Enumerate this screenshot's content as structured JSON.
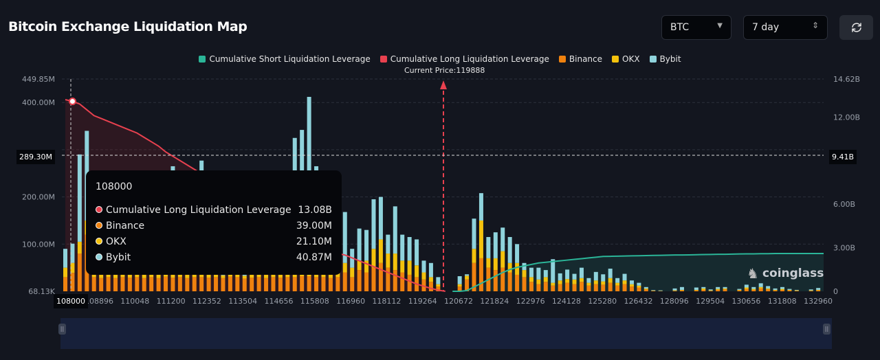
{
  "header": {
    "title": "Bitcoin Exchange Liquidation Map",
    "coin_select": "BTC",
    "range_select": "7 day",
    "refresh_icon": "refresh-icon"
  },
  "legend": [
    {
      "label": "Cumulative Short Liquidation Leverage",
      "color": "#2bb598"
    },
    {
      "label": "Cumulative Long Liquidation Leverage",
      "color": "#e8414f"
    },
    {
      "label": "Binance",
      "color": "#f0820f"
    },
    {
      "label": "OKX",
      "color": "#f4c20d"
    },
    {
      "label": "Bybit",
      "color": "#8fd3dc"
    }
  ],
  "current_price_label": "Current Price:119888",
  "crosshair": {
    "x_label": "108000",
    "left_label": "289.30M",
    "right_label": "9.41B"
  },
  "tooltip": {
    "title": "108000",
    "rows": [
      {
        "label": "Cumulative Long Liquidation Leverage",
        "value": "13.08B",
        "color": "#e8414f"
      },
      {
        "label": "Binance",
        "value": "39.00M",
        "color": "#f0820f"
      },
      {
        "label": "OKX",
        "value": "21.10M",
        "color": "#f4c20d"
      },
      {
        "label": "Bybit",
        "value": "40.87M",
        "color": "#8fd3dc"
      }
    ]
  },
  "watermark": "coinglass",
  "chart_data": {
    "type": "bar",
    "stacked": true,
    "title": "",
    "xlabel": "",
    "ylabel": "",
    "y2label": "",
    "x_tick_labels": [
      "108896",
      "110048",
      "111200",
      "112352",
      "113504",
      "114656",
      "115808",
      "116960",
      "118112",
      "119264",
      "120672",
      "121824",
      "122976",
      "124128",
      "125280",
      "126432",
      "128096",
      "129504",
      "130656",
      "131808",
      "132960"
    ],
    "y_left_ticks": [
      "449.85M",
      "400.00M",
      "200.00M",
      "100.00M",
      "68.13K"
    ],
    "y_left_range_millions": [
      0,
      449.85
    ],
    "y_right_ticks": [
      "14.62B",
      "12.00B",
      "6.00B",
      "3.00B",
      "0"
    ],
    "y_right_range_billions": [
      0,
      14.62
    ],
    "current_price": 119888,
    "grid": true,
    "legend_position": "top",
    "series": [
      {
        "name": "Binance",
        "unit": "M",
        "values": [
          30,
          39,
          80,
          120,
          30,
          28,
          30,
          28,
          30,
          29,
          30,
          28,
          30,
          28,
          31,
          29,
          30,
          28,
          30,
          30,
          29,
          30,
          28,
          31,
          30,
          27,
          29,
          30,
          28,
          30,
          29,
          30,
          30,
          32,
          32,
          30,
          30,
          28,
          30,
          40,
          30,
          45,
          40,
          50,
          60,
          50,
          45,
          40,
          35,
          30,
          25,
          20,
          10,
          0,
          0,
          10,
          25,
          60,
          70,
          50,
          45,
          50,
          40,
          35,
          30,
          20,
          15,
          20,
          12,
          15,
          18,
          15,
          20,
          12,
          15,
          14,
          18,
          12,
          15,
          10,
          8,
          4,
          1,
          0.5,
          0,
          1,
          2,
          0,
          2,
          3,
          1,
          3,
          4,
          0,
          2,
          5,
          3,
          6,
          4,
          2,
          3,
          2,
          1,
          0,
          1,
          2
        ]
      },
      {
        "name": "OKX",
        "unit": "M",
        "values": [
          20,
          21.1,
          25,
          30,
          8,
          7,
          8,
          7,
          6,
          7,
          8,
          7,
          8,
          7,
          8,
          6,
          7,
          7,
          8,
          7,
          8,
          7,
          6,
          8,
          7,
          6,
          8,
          7,
          7,
          8,
          7,
          8,
          10,
          10,
          10,
          10,
          8,
          8,
          8,
          20,
          20,
          20,
          25,
          40,
          50,
          30,
          35,
          25,
          30,
          25,
          15,
          10,
          5,
          0,
          0,
          5,
          8,
          30,
          80,
          20,
          25,
          35,
          20,
          25,
          15,
          10,
          10,
          10,
          6,
          8,
          8,
          10,
          8,
          6,
          8,
          7,
          10,
          6,
          8,
          5,
          4,
          2,
          0.5,
          0.5,
          0,
          1,
          1,
          0,
          1,
          3,
          1,
          2,
          2,
          0,
          1,
          3,
          2,
          3,
          2,
          1,
          2,
          1,
          1,
          0,
          1,
          1
        ]
      },
      {
        "name": "Bybit",
        "unit": "M",
        "values": [
          40,
          40.87,
          185,
          190,
          40,
          5,
          4,
          6,
          5,
          20,
          4,
          5,
          6,
          4,
          5,
          230,
          6,
          5,
          4,
          240,
          5,
          6,
          4,
          10,
          5,
          3,
          8,
          15,
          4,
          6,
          10,
          10,
          285,
          300,
          370,
          225,
          5,
          6,
          20,
          108,
          40,
          68,
          65,
          105,
          90,
          40,
          100,
          55,
          50,
          55,
          25,
          30,
          15,
          0,
          0,
          17,
          3,
          64,
          58,
          45,
          55,
          50,
          55,
          40,
          15,
          20,
          25,
          15,
          50,
          15,
          20,
          12,
          22,
          10,
          18,
          15,
          20,
          10,
          14,
          8,
          6,
          3,
          1,
          1,
          0,
          4,
          6,
          0,
          5,
          3,
          2,
          4,
          3,
          0,
          2,
          6,
          4,
          8,
          5,
          3,
          4,
          2,
          1,
          0,
          2,
          4
        ]
      },
      {
        "name": "Cumulative Long Liquidation Leverage",
        "unit": "B",
        "axis": "right",
        "values": [
          13.2,
          13.08,
          12.9,
          12.5,
          12.1,
          11.9,
          11.7,
          11.5,
          11.3,
          11.1,
          10.9,
          10.6,
          10.3,
          10.0,
          9.6,
          9.3,
          9.0,
          8.7,
          8.4,
          8.1,
          7.8,
          7.5,
          7.2,
          6.9,
          6.6,
          6.3,
          6.0,
          5.7,
          5.4,
          5.1,
          4.8,
          4.5,
          4.2,
          3.9,
          3.6,
          3.3,
          3.0,
          2.8,
          2.6,
          2.5,
          2.3,
          2.1,
          1.9,
          1.7,
          1.5,
          1.3,
          1.1,
          0.9,
          0.7,
          0.5,
          0.35,
          0.2,
          0.08,
          0
        ]
      },
      {
        "name": "Cumulative Short Liquidation Leverage",
        "unit": "B",
        "axis": "right",
        "start_index": 54,
        "values": [
          0,
          0,
          0.05,
          0.3,
          0.55,
          0.8,
          1.05,
          1.3,
          1.5,
          1.65,
          1.75,
          1.85,
          1.95,
          2.0,
          2.05,
          2.1,
          2.15,
          2.2,
          2.25,
          2.3,
          2.35,
          2.4,
          2.41,
          2.42,
          2.43,
          2.44,
          2.45,
          2.46,
          2.47,
          2.48,
          2.49,
          2.5,
          2.5,
          2.51,
          2.52,
          2.53,
          2.54,
          2.55,
          2.55,
          2.56,
          2.57,
          2.58,
          2.58,
          2.59,
          2.59,
          2.6,
          2.6,
          2.6,
          2.6,
          2.6,
          2.6,
          2.6
        ]
      }
    ]
  }
}
